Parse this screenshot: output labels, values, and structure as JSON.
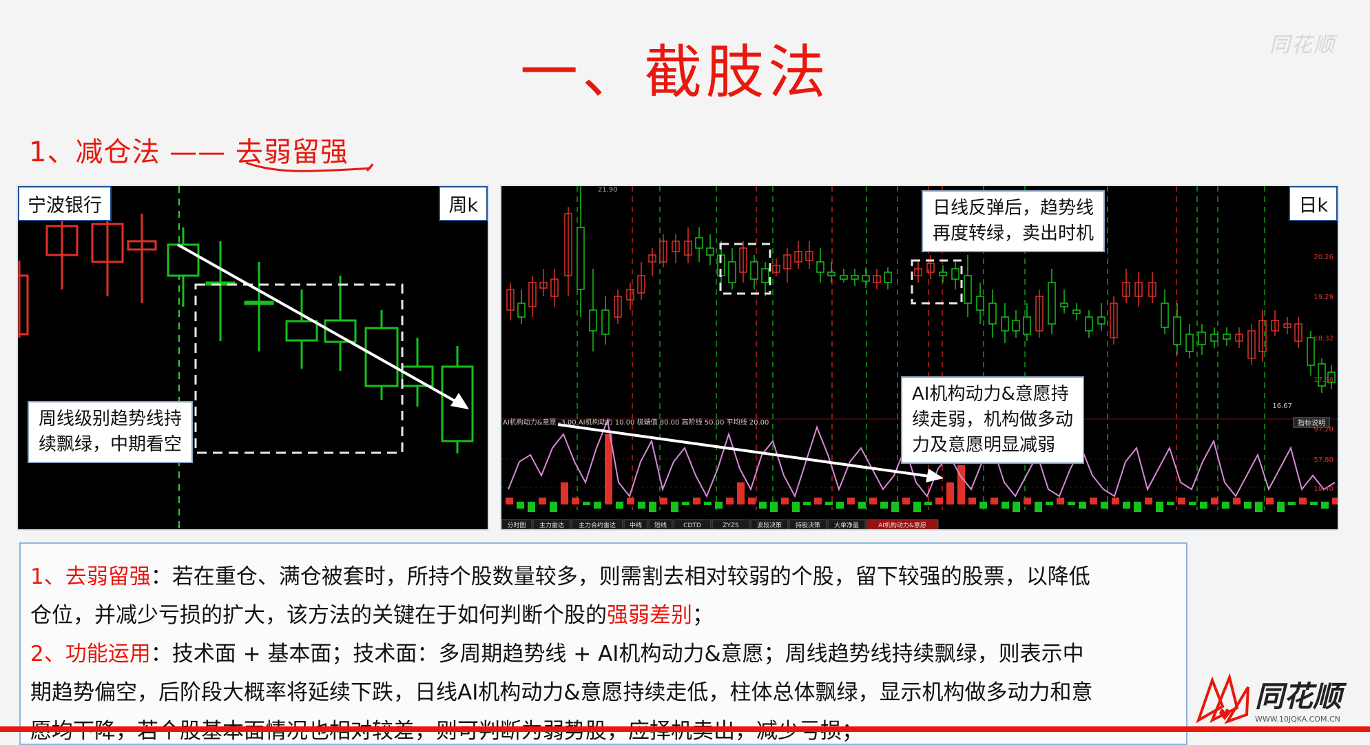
{
  "slide_title": "一、截肢法",
  "watermark": "同花顺",
  "subtitle": {
    "prefix": "1、减仓法 —— ",
    "highlight": "去弱留强"
  },
  "weekly_chart": {
    "stock_name": "宁波银行",
    "period": "周k",
    "callout": [
      "周线级别趋势线持",
      "续飘绿，中期看空"
    ]
  },
  "daily_chart": {
    "period": "日k",
    "top_left_price": "21.90",
    "price_axis": [
      "20.26",
      "19.29",
      "18.32",
      "17.36",
      "16.67"
    ],
    "indicator_axis": [
      "97.20",
      "57.80",
      "18.40"
    ],
    "indicator_header": "AI机构动力&意愿  -3.00  AI机构动力 10.00  极端值 80.00  高阶线 50.00  平均线 20.00",
    "indicator_button": "指标说明",
    "callout_top": [
      "日线反弹后，趋势线",
      "再度转绿，卖出时机"
    ],
    "callout_bottom": [
      "AI机构动力&意愿持",
      "续走弱，机构做多动",
      "力及意愿明显减弱"
    ],
    "bottom_tabs": [
      "分时图",
      "主力雷达",
      "主力合约雷达",
      "中线",
      "短线",
      "CDTD",
      "ZYZS",
      "波段决策",
      "持股决策",
      "大单净量",
      "AI机构动力&意愿"
    ]
  },
  "description": {
    "line1_label": "1、去弱留强",
    "line1_text": "：若在重仓、满仓被套时，所持个股数量较多，则需割去相对较弱的个股，留下较强的股票，以降低",
    "line2_text_a": "仓位，并减少亏损的扩大，该方法的关键在于如何判断个股的",
    "line2_highlight": "强弱差别",
    "line2_text_b": "；",
    "line3_label": "2、功能运用",
    "line3_text": "：技术面 + 基本面；技术面：多周期趋势线 + AI机构动力&意愿；周线趋势线持续飘绿，则表示中",
    "line4_text": "期趋势偏空，后阶段大概率将延续下跌，日线AI机构动力&意愿持续走低，柱体总体飘绿，显示机构做多动力和意",
    "line5_text": "愿均下降，若个股基本面情况也相对较差，则可判断为弱势股，应择机卖出，减少亏损；"
  },
  "corner_logo": {
    "name": "同花顺",
    "url_text": "WWW.10JQKA.COM.CN"
  },
  "colors": {
    "title_red": "#e8180e",
    "candle_red": "#e0302a",
    "candle_green": "#15c11c",
    "indicator_line": "#d58bd8",
    "border_blue": "#8db4e0"
  }
}
